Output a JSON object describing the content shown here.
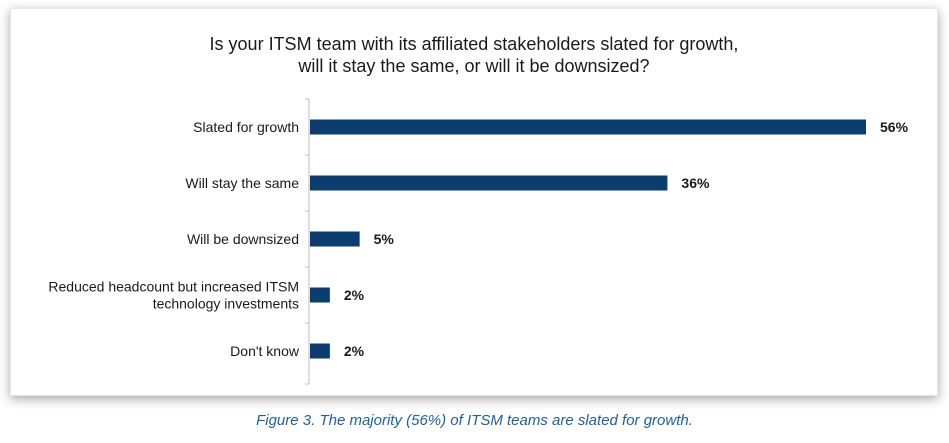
{
  "chart_data": {
    "type": "bar",
    "orientation": "horizontal",
    "title_lines": [
      "Is your ITSM team with its affiliated stakeholders slated for growth,",
      "will it stay the same, or will it be downsized?"
    ],
    "categories": [
      [
        "Slated for growth"
      ],
      [
        "Will stay the same"
      ],
      [
        "Will be downsized"
      ],
      [
        "Reduced headcount but increased ITSM",
        "technology investments"
      ],
      [
        "Don't know"
      ]
    ],
    "values": [
      56,
      36,
      5,
      2,
      2
    ],
    "value_labels": [
      "56%",
      "36%",
      "5%",
      "2%",
      "2%"
    ],
    "xlim": [
      0,
      56
    ],
    "bar_color": "#0b3d6e",
    "grid": false
  },
  "caption": "Figure 3. The majority (56%) of ITSM teams are slated for growth."
}
